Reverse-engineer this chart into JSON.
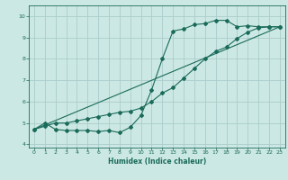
{
  "xlabel": "Humidex (Indice chaleur)",
  "bg_color": "#cce8e4",
  "grid_color": "#aacccc",
  "line_color": "#1a6b5a",
  "xlim": [
    -0.5,
    23.5
  ],
  "ylim": [
    3.85,
    10.5
  ],
  "xticks": [
    0,
    1,
    2,
    3,
    4,
    5,
    6,
    7,
    8,
    9,
    10,
    11,
    12,
    13,
    14,
    15,
    16,
    17,
    18,
    19,
    20,
    21,
    22,
    23
  ],
  "yticks": [
    4,
    5,
    6,
    7,
    8,
    9,
    10
  ],
  "line1_x": [
    0,
    1,
    2,
    3,
    4,
    5,
    6,
    7,
    8,
    9,
    10,
    11,
    12,
    13,
    14,
    15,
    16,
    17,
    18,
    19,
    20,
    21,
    22,
    23
  ],
  "line1_y": [
    4.7,
    5.0,
    4.7,
    4.65,
    4.65,
    4.65,
    4.6,
    4.65,
    4.55,
    4.8,
    5.35,
    6.55,
    8.0,
    9.3,
    9.4,
    9.6,
    9.65,
    9.8,
    9.8,
    9.5,
    9.55,
    9.5,
    9.5,
    9.5
  ],
  "line2_x": [
    0,
    1,
    2,
    3,
    4,
    5,
    6,
    7,
    8,
    9,
    10,
    11,
    12,
    13,
    14,
    15,
    16,
    17,
    18,
    19,
    20,
    21,
    22,
    23
  ],
  "line2_y": [
    4.7,
    4.85,
    5.0,
    5.0,
    5.1,
    5.2,
    5.3,
    5.4,
    5.5,
    5.55,
    5.7,
    6.0,
    6.4,
    6.65,
    7.1,
    7.55,
    8.0,
    8.35,
    8.55,
    8.95,
    9.25,
    9.45,
    9.5,
    9.5
  ],
  "line3_x": [
    0,
    23
  ],
  "line3_y": [
    4.7,
    9.5
  ]
}
